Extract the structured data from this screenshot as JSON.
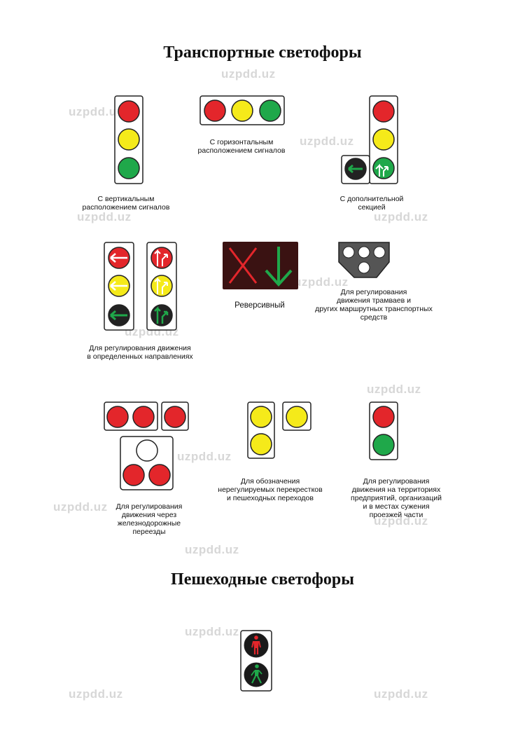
{
  "titles": {
    "transport": "Транспортные светофоры",
    "pedestrian": "Пешеходные светофоры"
  },
  "captions": {
    "vertical": "С  вертикальным\nрасположением сигналов",
    "horizontal": "С  горизонтальным\nрасположением сигналов",
    "additional": "С дополнительной\nсекцией",
    "directions": "Для регулирования движения\nв определенных направлениях",
    "reversible": "Реверсивный",
    "tram": "Для регулирования\nдвижения трамваев и\nдругих маршрутных транспортных\nсредств",
    "railway": "Для регулирования\nдвижения через\nжелезнодорожные\nпереезды",
    "unregulated": "Для обозначения\nнерегулируемых перекрестков\nи пешеходных переходов",
    "territory": "Для регулирования\nдвижения на территориях\nпредприятий, организаций\nи в местах сужения\nпроезжей части"
  },
  "watermark": "uzpdd.uz",
  "colors": {
    "red": "#e3262b",
    "yellow": "#f5ea1a",
    "green": "#1fa84a",
    "dark": "#222222",
    "housing_stroke": "#222222"
  },
  "icons": {
    "arrow": "arrow-icon",
    "cross": "red-x-icon",
    "down_arrow": "green-down-arrow-icon",
    "pedestrian": "pedestrian-icon"
  }
}
